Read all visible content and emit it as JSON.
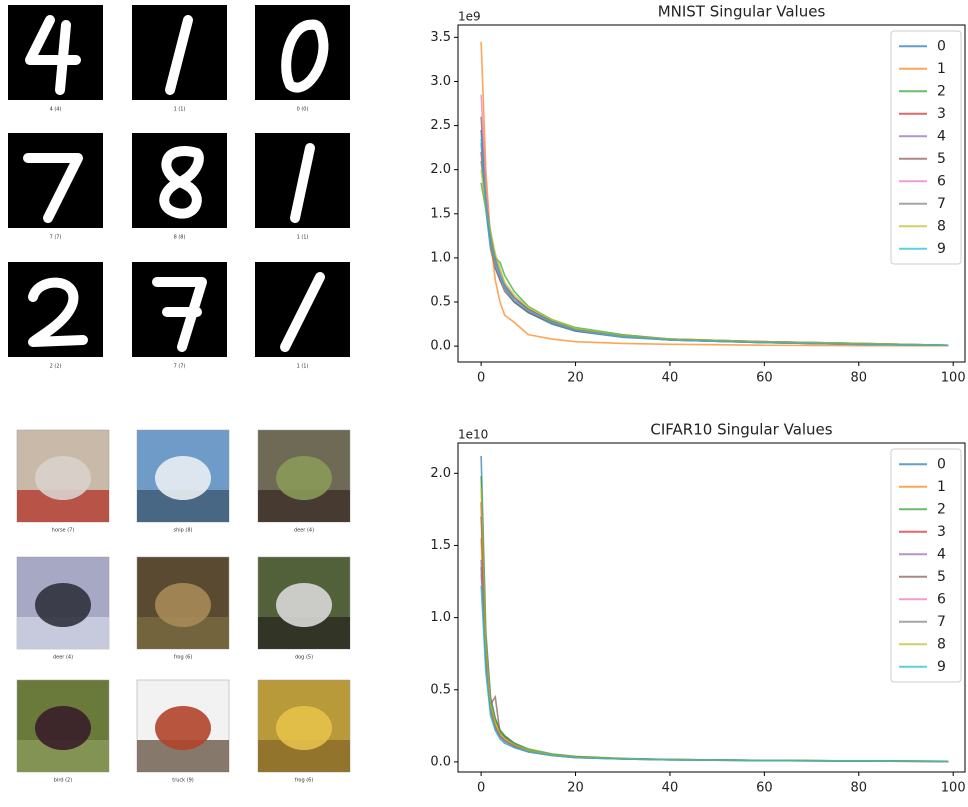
{
  "image_grids": [
    {
      "captions": [
        "4 (4)",
        "1 (1)",
        "0 (0)",
        "7 (7)",
        "8 (8)",
        "1 (1)",
        "2 (2)",
        "7 (7)",
        "1 (1)"
      ]
    },
    {
      "captions": [
        "horse (7)",
        "ship (8)",
        "deer (4)",
        "deer (4)",
        "frog (6)",
        "dog (5)",
        "bird (2)",
        "truck (9)",
        "frog (6)"
      ]
    }
  ],
  "chart_data": [
    {
      "type": "line",
      "title": "MNIST Singular Values",
      "y_offset_label": "1e9",
      "x": [
        0,
        1,
        2,
        3,
        4,
        5,
        7,
        10,
        15,
        20,
        30,
        40,
        60,
        80,
        99
      ],
      "xlim": [
        -4.9,
        102.5
      ],
      "xticks": [
        0,
        20,
        40,
        60,
        80,
        100
      ],
      "ylim": [
        -0.18,
        3.64
      ],
      "yticks": [
        {
          "value": 0,
          "label": "0.0"
        },
        0.5,
        {
          "value": 1,
          "label": "1.0"
        },
        1.5,
        {
          "value": 2,
          "label": "2.0"
        },
        2.5,
        {
          "value": 3,
          "label": "3.0"
        },
        3.5
      ],
      "legend": "upper right",
      "series": [
        {
          "name": "0",
          "color": "#1f77b4",
          "values": [
            2.45,
            1.55,
            1.1,
            0.88,
            0.75,
            0.65,
            0.5,
            0.38,
            0.25,
            0.17,
            0.1,
            0.07,
            0.04,
            0.02,
            0.01
          ]
        },
        {
          "name": "1",
          "color": "#ff7f0e",
          "values": [
            3.45,
            2.0,
            1.2,
            0.75,
            0.5,
            0.35,
            0.27,
            0.13,
            0.08,
            0.05,
            0.03,
            0.02,
            0.01,
            0.005,
            0.003
          ]
        },
        {
          "name": "2",
          "color": "#2ca02c",
          "values": [
            1.85,
            1.55,
            1.25,
            1.0,
            0.95,
            0.8,
            0.62,
            0.45,
            0.3,
            0.21,
            0.13,
            0.08,
            0.05,
            0.03,
            0.01
          ]
        },
        {
          "name": "3",
          "color": "#d62728",
          "values": [
            2.2,
            1.6,
            1.2,
            0.95,
            0.8,
            0.68,
            0.55,
            0.42,
            0.28,
            0.19,
            0.12,
            0.08,
            0.05,
            0.03,
            0.01
          ]
        },
        {
          "name": "4",
          "color": "#9467bd",
          "values": [
            2.3,
            1.6,
            1.25,
            0.98,
            0.8,
            0.68,
            0.55,
            0.4,
            0.27,
            0.18,
            0.11,
            0.07,
            0.04,
            0.02,
            0.01
          ]
        },
        {
          "name": "5",
          "color": "#8c564b",
          "values": [
            2.6,
            1.7,
            1.2,
            0.9,
            0.75,
            0.62,
            0.5,
            0.38,
            0.26,
            0.17,
            0.11,
            0.07,
            0.04,
            0.02,
            0.01
          ]
        },
        {
          "name": "6",
          "color": "#e377c2",
          "values": [
            2.85,
            1.8,
            1.25,
            0.92,
            0.78,
            0.65,
            0.52,
            0.4,
            0.27,
            0.18,
            0.11,
            0.07,
            0.04,
            0.02,
            0.01
          ]
        },
        {
          "name": "7",
          "color": "#7f7f7f",
          "values": [
            2.1,
            1.6,
            1.3,
            1.0,
            0.85,
            0.7,
            0.55,
            0.42,
            0.28,
            0.19,
            0.12,
            0.08,
            0.05,
            0.03,
            0.01
          ]
        },
        {
          "name": "8",
          "color": "#bcbd22",
          "values": [
            2.0,
            1.55,
            1.3,
            1.05,
            0.88,
            0.72,
            0.58,
            0.44,
            0.3,
            0.2,
            0.12,
            0.08,
            0.05,
            0.03,
            0.01
          ]
        },
        {
          "name": "9",
          "color": "#17becf",
          "values": [
            2.35,
            1.6,
            1.2,
            0.95,
            0.8,
            0.66,
            0.52,
            0.4,
            0.27,
            0.18,
            0.11,
            0.07,
            0.04,
            0.02,
            0.01
          ]
        }
      ]
    },
    {
      "type": "line",
      "title": "CIFAR10 Singular Values",
      "y_offset_label": "1e10",
      "x": [
        0,
        1,
        2,
        3,
        4,
        5,
        7,
        10,
        15,
        20,
        30,
        40,
        60,
        80,
        99
      ],
      "xlim": [
        -4.9,
        102.5
      ],
      "xticks": [
        0,
        20,
        40,
        60,
        80,
        100
      ],
      "ylim": [
        -0.07,
        2.21
      ],
      "yticks": [
        {
          "value": 0,
          "label": "0.0"
        },
        0.5,
        {
          "value": 1,
          "label": "1.0"
        },
        1.5,
        {
          "value": 2,
          "label": "2.0"
        }
      ],
      "legend": "upper right",
      "series": [
        {
          "name": "0",
          "color": "#1f77b4",
          "values": [
            2.12,
            0.9,
            0.45,
            0.3,
            0.22,
            0.18,
            0.13,
            0.08,
            0.05,
            0.035,
            0.022,
            0.016,
            0.01,
            0.007,
            0.004
          ]
        },
        {
          "name": "1",
          "color": "#ff7f0e",
          "values": [
            1.55,
            0.75,
            0.4,
            0.28,
            0.2,
            0.17,
            0.12,
            0.08,
            0.05,
            0.035,
            0.022,
            0.016,
            0.01,
            0.007,
            0.004
          ]
        },
        {
          "name": "2",
          "color": "#2ca02c",
          "values": [
            1.98,
            0.85,
            0.42,
            0.3,
            0.22,
            0.18,
            0.13,
            0.09,
            0.055,
            0.038,
            0.024,
            0.017,
            0.011,
            0.007,
            0.004
          ]
        },
        {
          "name": "3",
          "color": "#d62728",
          "values": [
            1.8,
            0.8,
            0.38,
            0.25,
            0.18,
            0.15,
            0.11,
            0.07,
            0.045,
            0.03,
            0.02,
            0.014,
            0.009,
            0.006,
            0.003
          ]
        },
        {
          "name": "4",
          "color": "#9467bd",
          "values": [
            1.4,
            0.7,
            0.35,
            0.22,
            0.17,
            0.14,
            0.1,
            0.07,
            0.045,
            0.03,
            0.02,
            0.014,
            0.009,
            0.006,
            0.003
          ]
        },
        {
          "name": "5",
          "color": "#8c564b",
          "values": [
            1.7,
            0.8,
            0.4,
            0.45,
            0.2,
            0.17,
            0.12,
            0.08,
            0.05,
            0.035,
            0.022,
            0.016,
            0.01,
            0.007,
            0.004
          ]
        },
        {
          "name": "6",
          "color": "#e377c2",
          "values": [
            1.3,
            0.65,
            0.33,
            0.22,
            0.16,
            0.13,
            0.1,
            0.07,
            0.045,
            0.03,
            0.02,
            0.014,
            0.009,
            0.006,
            0.003
          ]
        },
        {
          "name": "7",
          "color": "#7f7f7f",
          "values": [
            1.35,
            0.7,
            0.36,
            0.24,
            0.18,
            0.15,
            0.11,
            0.075,
            0.048,
            0.033,
            0.021,
            0.015,
            0.01,
            0.006,
            0.003
          ]
        },
        {
          "name": "8",
          "color": "#bcbd22",
          "values": [
            1.9,
            0.82,
            0.4,
            0.27,
            0.2,
            0.16,
            0.12,
            0.08,
            0.05,
            0.034,
            0.022,
            0.016,
            0.01,
            0.007,
            0.004
          ]
        },
        {
          "name": "9",
          "color": "#17becf",
          "values": [
            1.22,
            0.62,
            0.32,
            0.22,
            0.16,
            0.13,
            0.1,
            0.07,
            0.045,
            0.03,
            0.02,
            0.014,
            0.009,
            0.006,
            0.003
          ]
        }
      ]
    }
  ]
}
